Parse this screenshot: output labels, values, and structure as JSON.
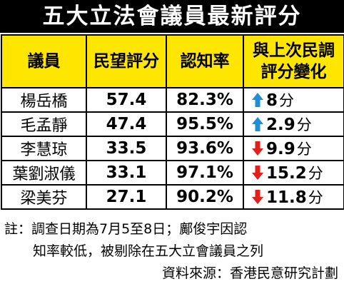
{
  "title": "五大立法會議員最新評分",
  "table": {
    "header": [
      "議員",
      "民望評分",
      "認知率",
      "與上次民調",
      "評分變化"
    ],
    "rows": [
      {
        "name": "楊岳橋",
        "score": "57.4",
        "rate": "82.3%",
        "direction": "up",
        "change": "8",
        "unit": "分"
      },
      {
        "name": "毛孟靜",
        "score": "47.4",
        "rate": "95.5%",
        "direction": "up",
        "change": "2.9",
        "unit": "分"
      },
      {
        "name": "李慧琼",
        "score": "33.5",
        "rate": "93.6%",
        "direction": "down",
        "change": "9.9",
        "unit": "分"
      },
      {
        "name": "葉劉淑儀",
        "score": "33.1",
        "rate": "97.1%",
        "direction": "down",
        "change": "15.2",
        "unit": "分"
      },
      {
        "name": "梁美芬",
        "score": "27.1",
        "rate": "90.2%",
        "direction": "down",
        "change": "11.8",
        "unit": "分"
      }
    ]
  },
  "notes": [
    "註：調查日期為7月5至8日；鄺俊宇因認",
    "知率較低，被剔除在五大立會議員之列",
    "資料來源：香港民意研究計劃"
  ]
}
